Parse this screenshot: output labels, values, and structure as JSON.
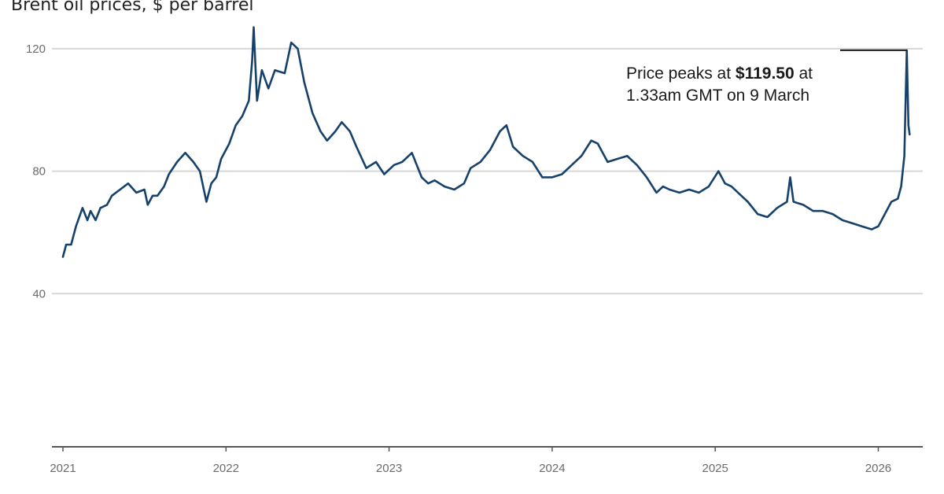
{
  "chart_data": {
    "type": "line",
    "title": "Brent oil prices, $ per barrel",
    "xlabel": "",
    "ylabel": "",
    "xlim": [
      2021.0,
      2026.21
    ],
    "ylim": [
      0,
      130
    ],
    "grid": true,
    "y_ticks": [
      {
        "value": 40,
        "label": "40"
      },
      {
        "value": 80,
        "label": "80"
      },
      {
        "value": 120,
        "label": "120"
      }
    ],
    "x_ticks": [
      {
        "value": 2021,
        "label": "2021"
      },
      {
        "value": 2022,
        "label": "2022"
      },
      {
        "value": 2023,
        "label": "2023"
      },
      {
        "value": 2024,
        "label": "2024"
      },
      {
        "value": 2025,
        "label": "2025"
      },
      {
        "value": 2026,
        "label": "2026"
      }
    ],
    "line_color": "#15416b",
    "series": [
      {
        "x": [
          2021.0,
          2021.02,
          2021.05,
          2021.08,
          2021.12,
          2021.15,
          2021.17,
          2021.2,
          2021.23,
          2021.27,
          2021.3,
          2021.35,
          2021.4,
          2021.45,
          2021.5,
          2021.52,
          2021.55,
          2021.58,
          2021.62,
          2021.65,
          2021.7,
          2021.75,
          2021.8,
          2021.84,
          2021.88,
          2021.91,
          2021.94,
          2021.97,
          2022.02,
          2022.06,
          2022.1,
          2022.14,
          2022.16,
          2022.17,
          2022.19,
          2022.22,
          2022.26,
          2022.3,
          2022.36,
          2022.4,
          2022.44,
          2022.48,
          2022.53,
          2022.58,
          2022.62,
          2022.67,
          2022.71,
          2022.76,
          2022.8,
          2022.86,
          2022.92,
          2022.97,
          2023.03,
          2023.08,
          2023.14,
          2023.2,
          2023.24,
          2023.28,
          2023.34,
          2023.4,
          2023.46,
          2023.5,
          2023.56,
          2023.62,
          2023.68,
          2023.72,
          2023.76,
          2023.82,
          2023.88,
          2023.94,
          2024.0,
          2024.06,
          2024.12,
          2024.18,
          2024.24,
          2024.28,
          2024.34,
          2024.4,
          2024.46,
          2024.52,
          2024.58,
          2024.64,
          2024.68,
          2024.72,
          2024.78,
          2024.84,
          2024.9,
          2024.96,
          2025.02,
          2025.06,
          2025.1,
          2025.14,
          2025.2,
          2025.26,
          2025.32,
          2025.38,
          2025.44,
          2025.46,
          2025.48,
          2025.54,
          2025.6,
          2025.66,
          2025.72,
          2025.78,
          2025.84,
          2025.9,
          2025.96,
          2026.0,
          2026.04,
          2026.08,
          2026.12,
          2026.14,
          2026.16,
          2026.175,
          2026.185,
          2026.192
        ],
        "values": [
          52,
          56,
          56,
          62,
          68,
          64,
          67,
          64,
          68,
          69,
          72,
          74,
          76,
          73,
          74,
          69,
          72,
          72,
          75,
          79,
          83,
          86,
          83,
          80,
          70,
          76,
          78,
          84,
          89,
          95,
          98,
          103,
          116,
          127,
          103,
          113,
          107,
          113,
          112,
          122,
          120,
          109,
          99,
          93,
          90,
          93,
          96,
          93,
          88,
          81,
          83,
          79,
          82,
          83,
          86,
          78,
          76,
          77,
          75,
          74,
          76,
          81,
          83,
          87,
          93,
          95,
          88,
          85,
          83,
          78,
          78,
          79,
          82,
          85,
          90,
          89,
          83,
          84,
          85,
          82,
          78,
          73,
          75,
          74,
          73,
          74,
          73,
          75,
          80,
          76,
          75,
          73,
          70,
          66,
          65,
          68,
          70,
          78,
          70,
          69,
          67,
          67,
          66,
          64,
          63,
          62,
          61,
          62,
          66,
          70,
          71,
          75,
          85,
          119.5,
          95,
          92
        ]
      }
    ],
    "annotation": {
      "text_before": "Price peaks at ",
      "text_bold": "$119.50",
      "text_after": " at",
      "text_line2": "1.33am GMT on 9 March",
      "x": 2026.175,
      "y": 119.5
    }
  }
}
